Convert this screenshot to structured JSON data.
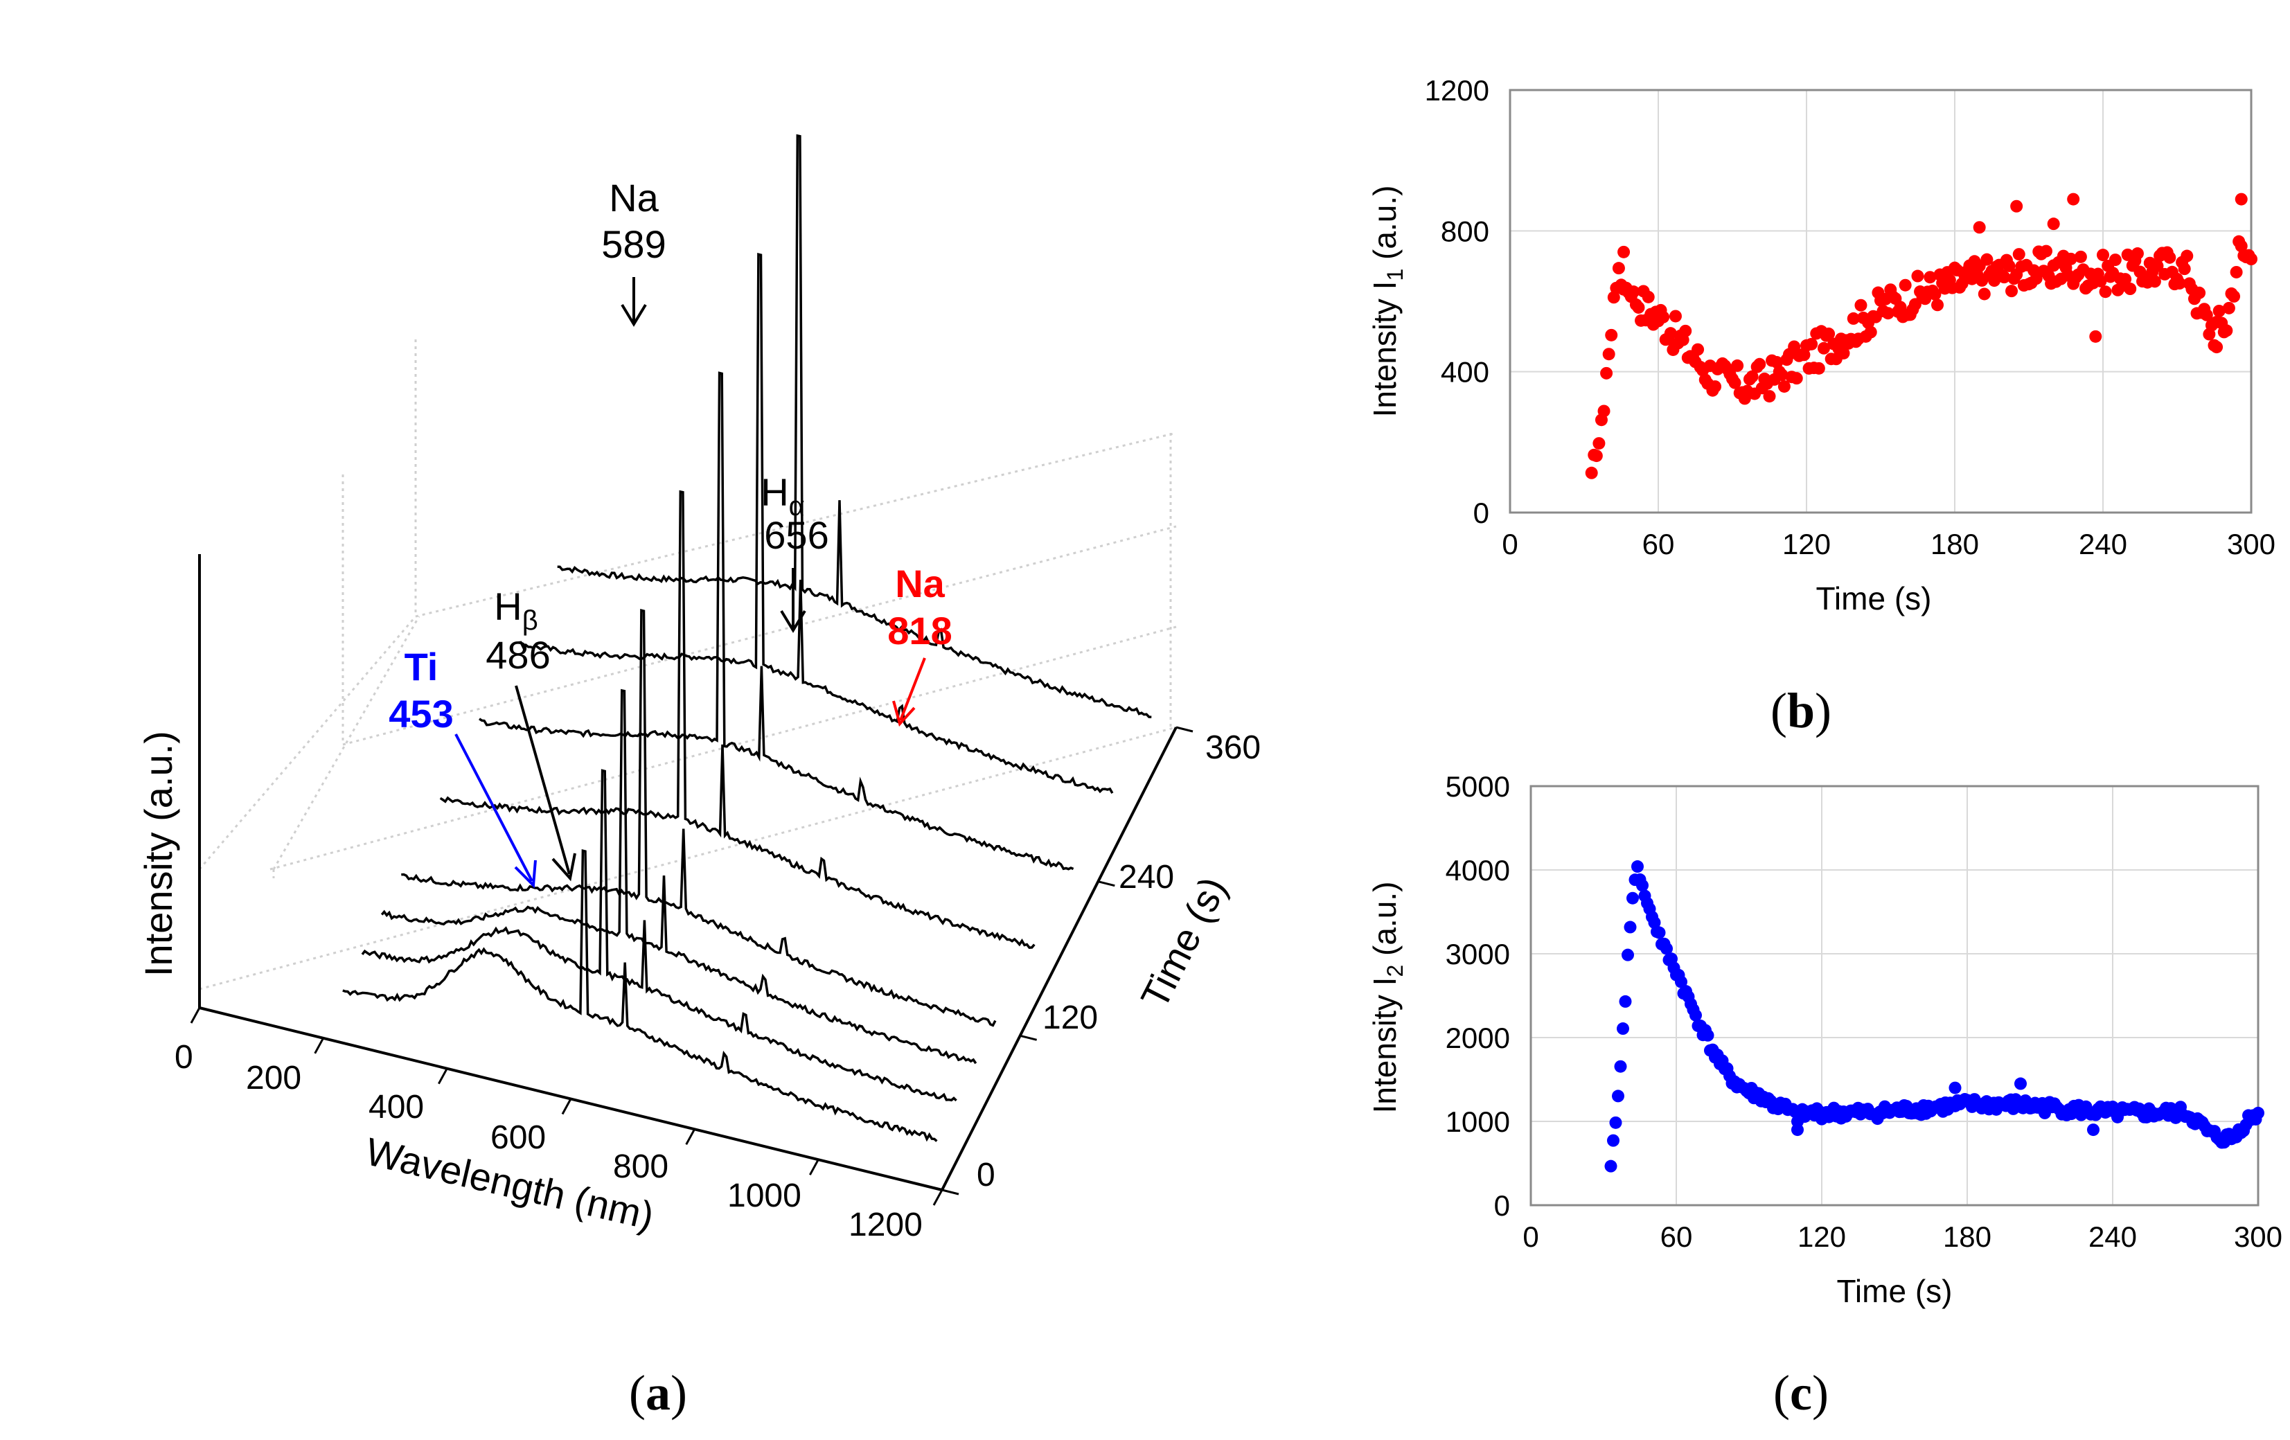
{
  "panel_labels": {
    "a": "a",
    "b": "b",
    "c": "c"
  },
  "chart_data": [
    {
      "id": "a",
      "type": "line",
      "title": "",
      "xlabel": "Wavelength (nm)",
      "ylabel": "Intensity (a.u.)",
      "zlabel": "Time (s)",
      "x_ticks": [
        "0",
        "200",
        "400",
        "600",
        "800",
        "1000",
        "1200"
      ],
      "z_ticks": [
        "0",
        "120",
        "240",
        "360"
      ],
      "xlim": [
        0,
        1200
      ],
      "zlim": [
        0,
        360
      ],
      "spectra_times": [
        30,
        60,
        90,
        120,
        180,
        240,
        300,
        360
      ],
      "peaks": [
        {
          "name": "Ti",
          "wavelength": 453,
          "label_lines": [
            "Ti",
            "453"
          ],
          "color": "#0000ff"
        },
        {
          "name": "H",
          "sub": "β",
          "wavelength": 486,
          "label_lines": [
            "H",
            "486"
          ],
          "color": "#000000"
        },
        {
          "name": "Na",
          "wavelength": 589,
          "label_lines": [
            "Na",
            "589"
          ],
          "color": "#000000"
        },
        {
          "name": "H",
          "sub": "α",
          "wavelength": 656,
          "label_lines": [
            "H",
            "656"
          ],
          "color": "#000000"
        },
        {
          "name": "Na",
          "wavelength": 818,
          "label_lines": [
            "Na",
            "818"
          ],
          "color": "#ff0000"
        }
      ]
    },
    {
      "id": "b",
      "type": "scatter",
      "xlabel": "Time (s)",
      "ylabel_main": "Intensity I",
      "ylabel_sub": "1",
      "ylabel_tail": " (a.u.)",
      "xlim": [
        0,
        300
      ],
      "ylim": [
        0,
        1200
      ],
      "x_ticks": [
        0,
        60,
        120,
        180,
        240,
        300
      ],
      "y_ticks": [
        0,
        400,
        800,
        1200
      ],
      "color": "#ff0000",
      "keypoints": [
        [
          33,
          100
        ],
        [
          34,
          150
        ],
        [
          36,
          200
        ],
        [
          38,
          300
        ],
        [
          39,
          400
        ],
        [
          41,
          500
        ],
        [
          42,
          620
        ],
        [
          44,
          680
        ],
        [
          45,
          650
        ],
        [
          50,
          620
        ],
        [
          55,
          580
        ],
        [
          60,
          560
        ],
        [
          65,
          520
        ],
        [
          70,
          480
        ],
        [
          75,
          440
        ],
        [
          80,
          400
        ],
        [
          85,
          380
        ],
        [
          90,
          370
        ],
        [
          95,
          360
        ],
        [
          100,
          370
        ],
        [
          105,
          380
        ],
        [
          110,
          400
        ],
        [
          115,
          420
        ],
        [
          120,
          440
        ],
        [
          125,
          460
        ],
        [
          130,
          480
        ],
        [
          140,
          530
        ],
        [
          150,
          580
        ],
        [
          160,
          610
        ],
        [
          170,
          630
        ],
        [
          180,
          650
        ],
        [
          190,
          670
        ],
        [
          200,
          680
        ],
        [
          210,
          690
        ],
        [
          220,
          690
        ],
        [
          230,
          690
        ],
        [
          240,
          680
        ],
        [
          250,
          680
        ],
        [
          260,
          690
        ],
        [
          270,
          700
        ],
        [
          275,
          680
        ],
        [
          280,
          560
        ],
        [
          285,
          520
        ],
        [
          290,
          540
        ],
        [
          295,
          740
        ],
        [
          300,
          720
        ]
      ],
      "outliers": [
        [
          46,
          740
        ],
        [
          190,
          810
        ],
        [
          205,
          870
        ],
        [
          228,
          890
        ],
        [
          220,
          820
        ],
        [
          286,
          470
        ],
        [
          237,
          500
        ],
        [
          296,
          890
        ]
      ]
    },
    {
      "id": "c",
      "type": "scatter",
      "xlabel": "Time (s)",
      "ylabel_main": "Intensity I",
      "ylabel_sub": "2",
      "ylabel_tail": " (a.u.)",
      "xlim": [
        0,
        300
      ],
      "ylim": [
        0,
        5000
      ],
      "x_ticks": [
        0,
        60,
        120,
        180,
        240,
        300
      ],
      "y_ticks": [
        0,
        1000,
        2000,
        3000,
        4000,
        5000
      ],
      "color": "#0000ff",
      "keypoints": [
        [
          33,
          450
        ],
        [
          34,
          750
        ],
        [
          35,
          1000
        ],
        [
          36,
          1300
        ],
        [
          37,
          1650
        ],
        [
          38,
          2100
        ],
        [
          39,
          2450
        ],
        [
          40,
          3000
        ],
        [
          41,
          3300
        ],
        [
          42,
          3650
        ],
        [
          43,
          3900
        ],
        [
          44,
          4050
        ],
        [
          45,
          3900
        ],
        [
          48,
          3600
        ],
        [
          52,
          3300
        ],
        [
          56,
          3000
        ],
        [
          60,
          2800
        ],
        [
          65,
          2450
        ],
        [
          70,
          2150
        ],
        [
          75,
          1850
        ],
        [
          80,
          1600
        ],
        [
          85,
          1450
        ],
        [
          90,
          1350
        ],
        [
          95,
          1300
        ],
        [
          100,
          1200
        ],
        [
          105,
          1150
        ],
        [
          110,
          1050
        ],
        [
          115,
          1100
        ],
        [
          120,
          1100
        ],
        [
          140,
          1100
        ],
        [
          160,
          1150
        ],
        [
          180,
          1200
        ],
        [
          200,
          1200
        ],
        [
          220,
          1150
        ],
        [
          240,
          1100
        ],
        [
          260,
          1100
        ],
        [
          270,
          1100
        ],
        [
          275,
          1000
        ],
        [
          280,
          850
        ],
        [
          285,
          800
        ],
        [
          290,
          800
        ],
        [
          295,
          1000
        ],
        [
          300,
          1100
        ]
      ],
      "outliers": [
        [
          175,
          1400
        ],
        [
          202,
          1450
        ],
        [
          232,
          900
        ],
        [
          110,
          900
        ]
      ]
    }
  ]
}
